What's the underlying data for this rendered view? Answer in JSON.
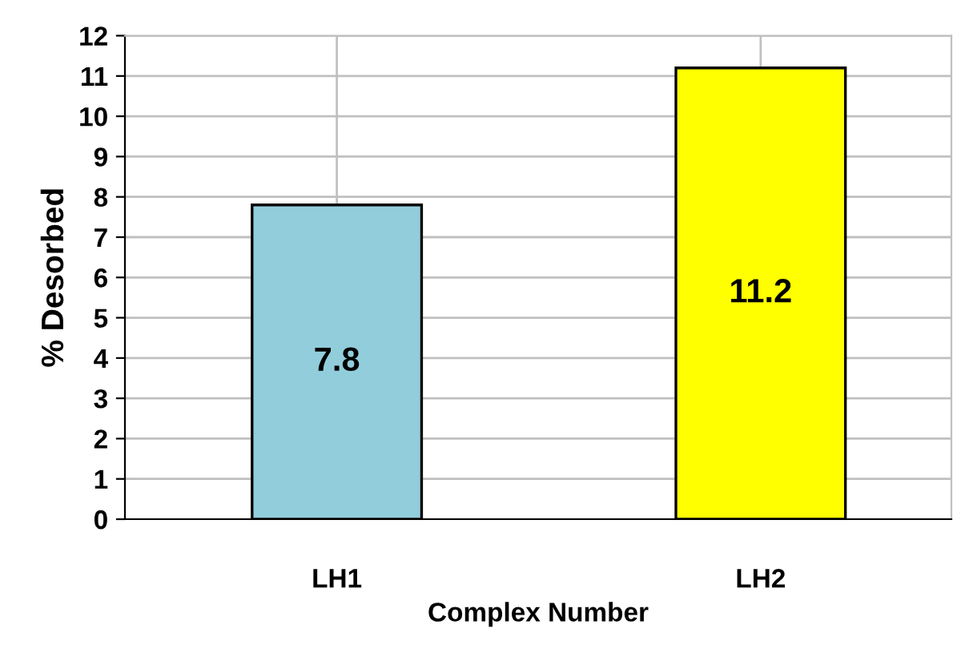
{
  "chart_data": {
    "type": "bar",
    "xlabel": "Complex Number",
    "ylabel": "% Desorbed",
    "categories": [
      "LH1",
      "LH2"
    ],
    "values": [
      7.8,
      11.2
    ],
    "colors": [
      "#92cddc",
      "#ffff00"
    ],
    "ylim": [
      0,
      12
    ],
    "yticks": [
      0,
      1,
      2,
      3,
      4,
      5,
      6,
      7,
      8,
      9,
      10,
      11,
      12
    ],
    "grid": true,
    "data_labels": true
  }
}
